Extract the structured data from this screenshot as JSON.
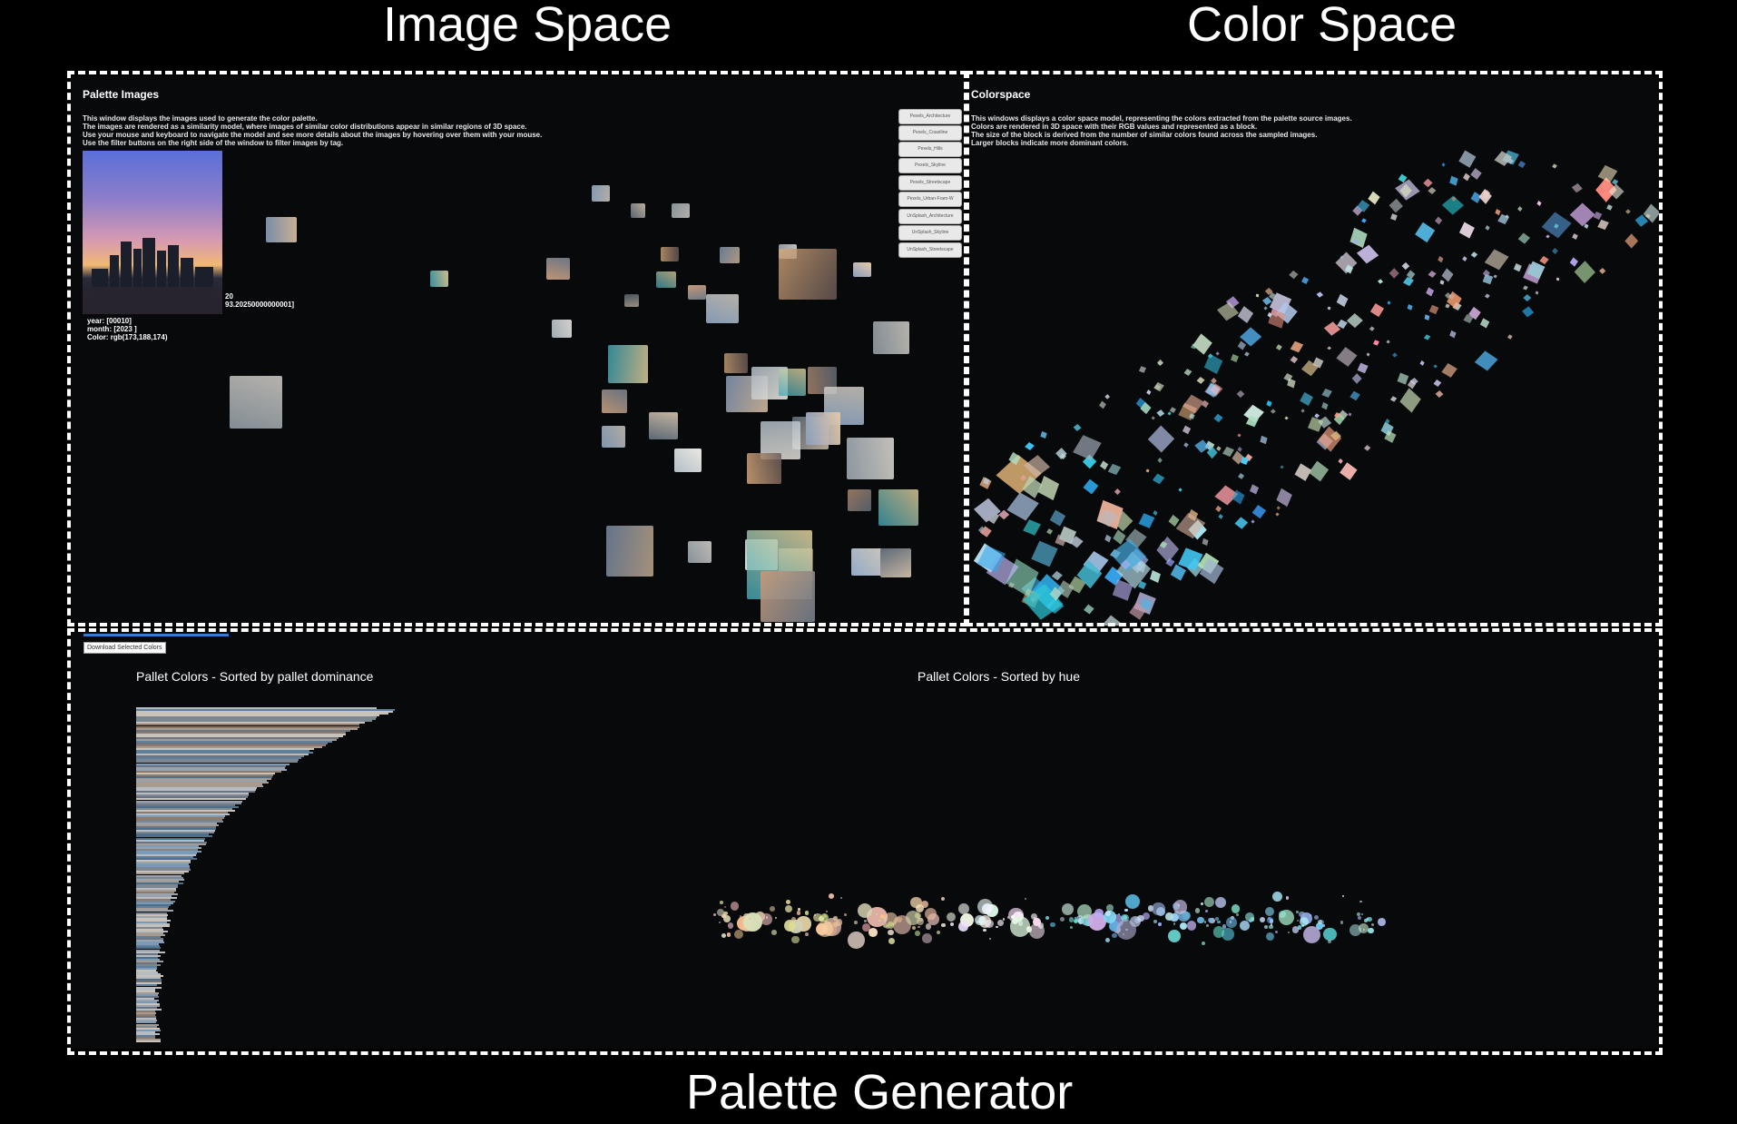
{
  "labels": {
    "image_space": "Image Space",
    "color_space": "Color Space",
    "palette_generator": "Palette Generator"
  },
  "image_panel": {
    "title": "Palette Images",
    "description": "This window displays the images used to generate the color palette.\nThe images are rendered as a similarity model, where images of similar color distributions appear in similar regions of 3D space.\nUse your mouse and keyboard to navigate the model and see more details about the images by hovering over them with your mouse.\nUse the filter buttons on the right side of the window to filter images by tag.",
    "filters": [
      "Pexels_Architecture",
      "Pexels_Coastline",
      "Pexels_Hills",
      "Pexels_Skyline",
      "Pexels_Streetscape",
      "Pexels_Urban-Fram-W",
      "UnSplash_Architecture",
      "UnSplash_Skyline",
      "UnSplash_Streetscape"
    ],
    "tooltip": {
      "line1": "20",
      "line2": "93.20250000000001]",
      "line3": "year: [00010]",
      "line4": "month: [2023 ]",
      "line5": "Color: rgb(173,188,174)"
    }
  },
  "color_panel": {
    "title": "Colorspace",
    "description": "This windows displays a color space model, representing the colors extracted from the palette source images.\nColors are rendered in 3D space with their RGB values and represented as a block.\nThe size of the block is derived from the number of similar colors found across the sampled images.\nLarger blocks indicate more dominant colors."
  },
  "palette_panel": {
    "download_label": "Download Selected Colors",
    "dominance_title": "Pallet Colors - Sorted by pallet dominance",
    "hue_title": "Pallet Colors - Sorted by hue"
  },
  "colors": {
    "panel_bg": "#07090b",
    "accent_blue": "#3a79d8",
    "cyan": "#2ab6e0"
  }
}
